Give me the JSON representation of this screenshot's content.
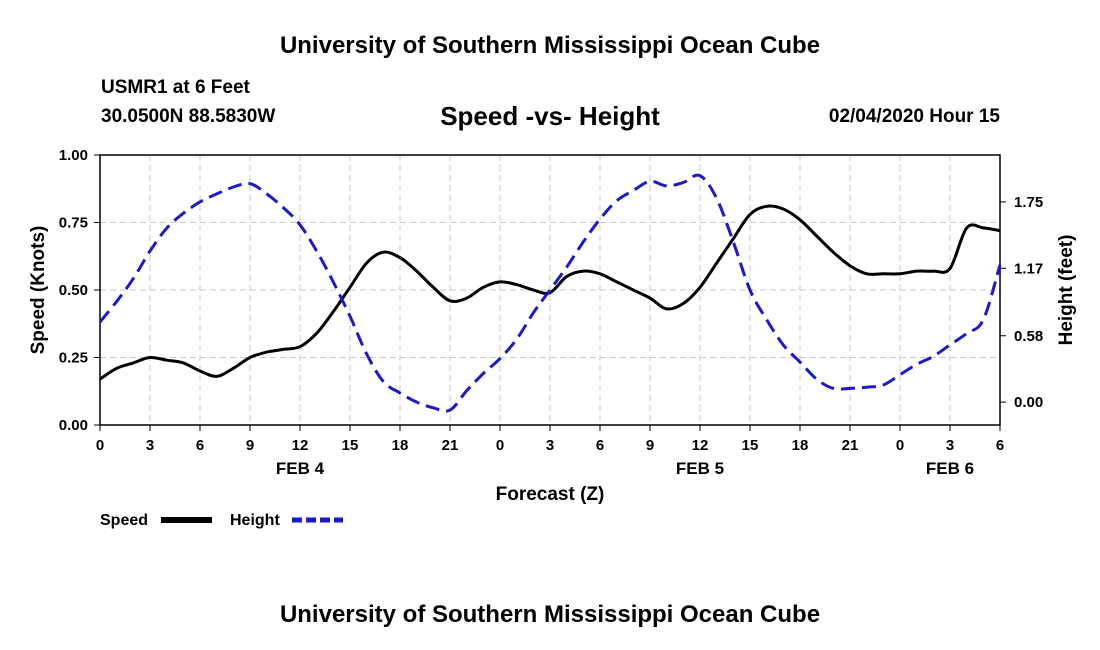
{
  "header": {
    "top_title": "University of Southern Mississippi Ocean Cube",
    "station": "USMR1 at 6 Feet",
    "coords": "30.0500N 88.5830W",
    "chart_title": "Speed -vs- Height",
    "datetime": "02/04/2020 Hour 15",
    "bottom_title": "University of Southern Mississippi Ocean Cube"
  },
  "legend": {
    "speed_label": "Speed",
    "height_label": "Height"
  },
  "colors": {
    "speed": "#000000",
    "height": "#1a1acc",
    "grid": "#c8c8c8"
  },
  "chart_data": {
    "type": "line",
    "title": "Speed -vs- Height",
    "xlabel": "Forecast (Z)",
    "ylabel": "Speed (Knots)",
    "ylabel_right": "Height (feet)",
    "x_hours": [
      0,
      1,
      2,
      3,
      4,
      5,
      6,
      7,
      8,
      9,
      10,
      11,
      12,
      13,
      14,
      15,
      16,
      17,
      18,
      19,
      20,
      21,
      22,
      23,
      24,
      25,
      26,
      27,
      28,
      29,
      30,
      31,
      32,
      33,
      34,
      35,
      36,
      37,
      38,
      39,
      40,
      41,
      42,
      43,
      44,
      45,
      46,
      47,
      48,
      49,
      50,
      51,
      52,
      53,
      54
    ],
    "xlim": [
      0,
      54
    ],
    "x_tick_labels": [
      "0",
      "3",
      "6",
      "9",
      "12",
      "15",
      "18",
      "21",
      "0",
      "3",
      "6",
      "9",
      "12",
      "15",
      "18",
      "21",
      "0",
      "3",
      "6"
    ],
    "x_tick_hours": [
      0,
      3,
      6,
      9,
      12,
      15,
      18,
      21,
      24,
      27,
      30,
      33,
      36,
      39,
      42,
      45,
      48,
      51,
      54
    ],
    "date_labels": [
      {
        "label": "FEB 4",
        "hour": 12
      },
      {
        "label": "FEB 5",
        "hour": 36
      },
      {
        "label": "FEB 6",
        "hour": 51
      }
    ],
    "ylim_left": [
      0,
      1
    ],
    "y_ticks_left": [
      "0.00",
      "0.25",
      "0.50",
      "0.75",
      "1.00"
    ],
    "y_tick_values_left": [
      0,
      0.25,
      0.5,
      0.75,
      1.0
    ],
    "ylim_right": [
      -0.2,
      2.16
    ],
    "y_ticks_right": [
      "0.00",
      "0.58",
      "1.17",
      "1.75"
    ],
    "y_tick_values_right": [
      0,
      0.58,
      1.17,
      1.75
    ],
    "series": [
      {
        "name": "Speed",
        "axis": "left",
        "style": "solid",
        "values": [
          0.17,
          0.21,
          0.23,
          0.25,
          0.24,
          0.23,
          0.2,
          0.18,
          0.21,
          0.25,
          0.27,
          0.28,
          0.29,
          0.34,
          0.42,
          0.51,
          0.6,
          0.64,
          0.62,
          0.57,
          0.51,
          0.46,
          0.47,
          0.51,
          0.53,
          0.52,
          0.5,
          0.49,
          0.55,
          0.57,
          0.56,
          0.53,
          0.5,
          0.47,
          0.43,
          0.45,
          0.51,
          0.6,
          0.69,
          0.78,
          0.81,
          0.8,
          0.76,
          0.7,
          0.64,
          0.59,
          0.56,
          0.56,
          0.56,
          0.57,
          0.57,
          0.58,
          0.73,
          0.73,
          0.72
        ]
      },
      {
        "name": "Height",
        "axis": "right",
        "style": "dashed",
        "values": [
          0.7,
          0.88,
          1.08,
          1.32,
          1.52,
          1.65,
          1.75,
          1.82,
          1.88,
          1.91,
          1.82,
          1.7,
          1.55,
          1.32,
          1.05,
          0.75,
          0.42,
          0.18,
          0.08,
          0.0,
          -0.05,
          -0.07,
          0.1,
          0.25,
          0.38,
          0.55,
          0.78,
          0.98,
          1.18,
          1.4,
          1.6,
          1.76,
          1.85,
          1.93,
          1.89,
          1.92,
          1.98,
          1.78,
          1.4,
          0.98,
          0.72,
          0.5,
          0.35,
          0.2,
          0.12,
          0.12,
          0.13,
          0.15,
          0.24,
          0.33,
          0.4,
          0.5,
          0.6,
          0.72,
          1.2
        ]
      }
    ]
  }
}
